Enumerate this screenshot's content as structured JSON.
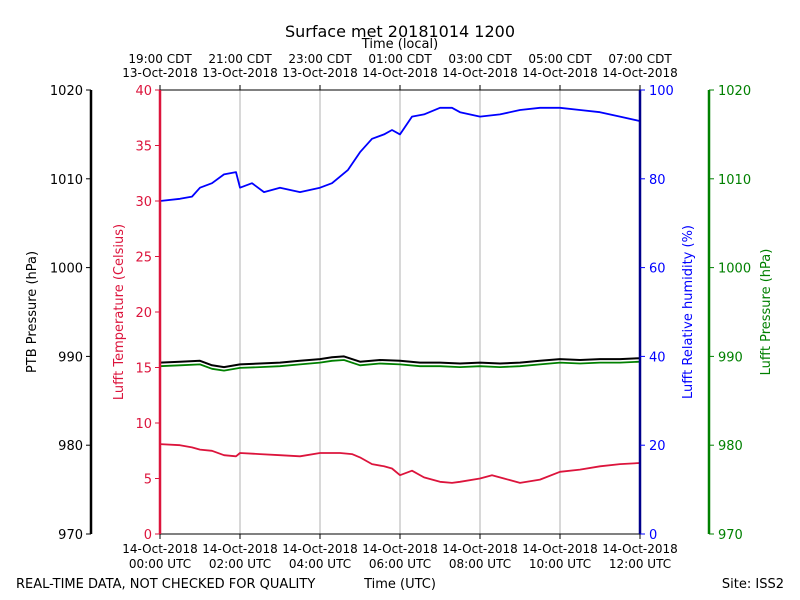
{
  "chart_data": {
    "type": "line",
    "title": "Surface met 20181014 1200",
    "top_axis_label": "Time (local)",
    "top_ticks": [
      {
        "l1": "19:00 CDT",
        "l2": "13-Oct-2018"
      },
      {
        "l1": "21:00 CDT",
        "l2": "13-Oct-2018"
      },
      {
        "l1": "23:00 CDT",
        "l2": "13-Oct-2018"
      },
      {
        "l1": "01:00 CDT",
        "l2": "14-Oct-2018"
      },
      {
        "l1": "03:00 CDT",
        "l2": "14-Oct-2018"
      },
      {
        "l1": "05:00 CDT",
        "l2": "14-Oct-2018"
      },
      {
        "l1": "07:00 CDT",
        "l2": "14-Oct-2018"
      }
    ],
    "bottom_ticks": [
      {
        "l1": "14-Oct-2018",
        "l2": "00:00 UTC"
      },
      {
        "l1": "14-Oct-2018",
        "l2": "02:00 UTC"
      },
      {
        "l1": "14-Oct-2018",
        "l2": "04:00 UTC"
      },
      {
        "l1": "14-Oct-2018",
        "l2": "06:00 UTC"
      },
      {
        "l1": "14-Oct-2018",
        "l2": "08:00 UTC"
      },
      {
        "l1": "14-Oct-2018",
        "l2": "10:00 UTC"
      },
      {
        "l1": "14-Oct-2018",
        "l2": "12:00 UTC"
      }
    ],
    "xlabel": "Time (UTC)",
    "xlim_hours": [
      0,
      12
    ],
    "footer_left": "REAL-TIME DATA, NOT CHECKED FOR QUALITY",
    "footer_right": "Site: ISS2",
    "axes": {
      "ptb": {
        "label": "PTB Pressure (hPa)",
        "range": [
          970,
          1020
        ],
        "ticks": [
          "970",
          "980",
          "990",
          "1000",
          "1010",
          "1020"
        ],
        "color": "#000000"
      },
      "temp": {
        "label": "Lufft Temperature (Celsius)",
        "range": [
          0,
          40
        ],
        "ticks": [
          "0",
          "5",
          "10",
          "15",
          "20",
          "25",
          "30",
          "35",
          "40"
        ],
        "color": "#dc143c"
      },
      "rh": {
        "label": "Lufft Relative humidity (%)",
        "range": [
          0,
          100
        ],
        "ticks": [
          "0",
          "20",
          "40",
          "60",
          "80",
          "100"
        ],
        "color": "#0000ff"
      },
      "lufft_p": {
        "label": "Lufft Pressure (hPa)",
        "range": [
          970,
          1020
        ],
        "ticks": [
          "970",
          "980",
          "990",
          "1000",
          "1010",
          "1020"
        ],
        "color": "#008000"
      }
    },
    "series": [
      {
        "name": "Lufft Relative humidity",
        "axis": "rh",
        "color": "#0000ff",
        "x": [
          0,
          0.5,
          0.8,
          1.0,
          1.3,
          1.6,
          1.9,
          2.0,
          2.3,
          2.6,
          3.0,
          3.5,
          4.0,
          4.3,
          4.7,
          5.0,
          5.3,
          5.6,
          5.8,
          6.0,
          6.3,
          6.6,
          7.0,
          7.3,
          7.5,
          8.0,
          8.5,
          9.0,
          9.5,
          10.0,
          10.5,
          11.0,
          11.5,
          12.0
        ],
        "y": [
          75,
          75.5,
          76,
          78,
          79,
          81,
          81.5,
          78,
          79,
          77,
          78,
          77,
          78,
          79,
          82,
          86,
          89,
          90,
          91,
          90,
          94,
          94.5,
          96,
          96,
          95,
          94,
          94.5,
          95.5,
          96,
          96,
          95.5,
          95,
          94,
          93
        ]
      },
      {
        "name": "PTB Pressure",
        "axis": "ptb",
        "color": "#000000",
        "x": [
          0,
          0.5,
          1.0,
          1.3,
          1.6,
          2.0,
          2.5,
          3.0,
          3.5,
          4.0,
          4.3,
          4.6,
          5.0,
          5.5,
          6.0,
          6.5,
          7.0,
          7.5,
          8.0,
          8.5,
          9.0,
          9.5,
          10.0,
          10.5,
          11.0,
          11.5,
          12.0
        ],
        "y": [
          989.3,
          989.4,
          989.5,
          989.0,
          988.8,
          989.1,
          989.2,
          989.3,
          989.5,
          989.7,
          989.9,
          990.0,
          989.4,
          989.6,
          989.5,
          989.3,
          989.3,
          989.2,
          989.3,
          989.2,
          989.3,
          989.5,
          989.7,
          989.6,
          989.7,
          989.7,
          989.8
        ]
      },
      {
        "name": "Lufft Pressure",
        "axis": "lufft_p",
        "color": "#008000",
        "x": [
          0,
          0.5,
          1.0,
          1.3,
          1.6,
          2.0,
          2.5,
          3.0,
          3.5,
          4.0,
          4.3,
          4.6,
          5.0,
          5.5,
          6.0,
          6.5,
          7.0,
          7.5,
          8.0,
          8.5,
          9.0,
          9.5,
          10.0,
          10.5,
          11.0,
          11.5,
          12.0
        ],
        "y": [
          988.9,
          989.0,
          989.1,
          988.6,
          988.4,
          988.7,
          988.8,
          988.9,
          989.1,
          989.3,
          989.5,
          989.6,
          989.0,
          989.2,
          989.1,
          988.9,
          988.9,
          988.8,
          988.9,
          988.8,
          988.9,
          989.1,
          989.3,
          989.2,
          989.3,
          989.3,
          989.4
        ]
      },
      {
        "name": "Lufft Temperature",
        "axis": "temp",
        "color": "#dc143c",
        "x": [
          0,
          0.5,
          0.8,
          1.0,
          1.3,
          1.6,
          1.9,
          2.0,
          2.5,
          3.0,
          3.5,
          4.0,
          4.5,
          4.8,
          5.0,
          5.3,
          5.6,
          5.8,
          6.0,
          6.3,
          6.6,
          7.0,
          7.3,
          7.5,
          8.0,
          8.3,
          8.6,
          9.0,
          9.5,
          10.0,
          10.5,
          11.0,
          11.5,
          12.0
        ],
        "y": [
          8.1,
          8.0,
          7.8,
          7.6,
          7.5,
          7.1,
          7.0,
          7.3,
          7.2,
          7.1,
          7.0,
          7.3,
          7.3,
          7.2,
          6.9,
          6.3,
          6.1,
          5.9,
          5.3,
          5.7,
          5.1,
          4.7,
          4.6,
          4.7,
          5.0,
          5.3,
          5.0,
          4.6,
          4.9,
          5.6,
          5.8,
          6.1,
          6.3,
          6.4
        ]
      }
    ]
  }
}
